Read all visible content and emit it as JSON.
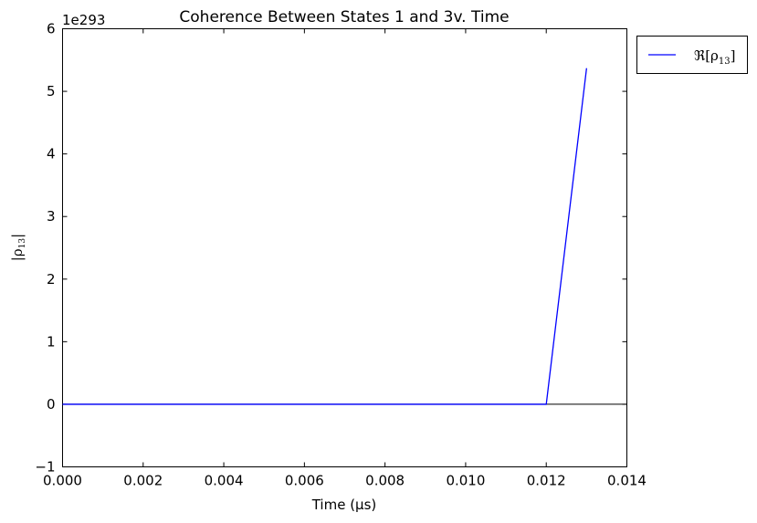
{
  "chart_data": {
    "type": "line",
    "title": "Coherence Between States 1 and 3v. Time",
    "xlabel": "Time (μs)",
    "ylabel": "|ρ13|",
    "ylabel_subscript": "13",
    "ylabel_main": "|ρ",
    "ylabel_end": "|",
    "y_offset_text": "1e293",
    "xlim": [
      0.0,
      0.014
    ],
    "ylim": [
      -1,
      6
    ],
    "x_ticks": [
      0.0,
      0.002,
      0.004,
      0.006,
      0.008,
      0.01,
      0.012,
      0.014
    ],
    "x_tick_labels": [
      "0.000",
      "0.002",
      "0.004",
      "0.006",
      "0.008",
      "0.010",
      "0.012",
      "0.014"
    ],
    "y_ticks": [
      -1,
      0,
      1,
      2,
      3,
      4,
      5,
      6
    ],
    "y_tick_labels": [
      "−1",
      "0",
      "1",
      "2",
      "3",
      "4",
      "5",
      "6"
    ],
    "zero_line": true,
    "grid": false,
    "legend_position": "outside-top-right",
    "series": [
      {
        "name": "ℜ[ρ13]",
        "name_main": "ℜ[ρ",
        "name_sub": "13",
        "name_end": "]",
        "color": "#0000ff",
        "x": [
          0.0,
          0.012,
          0.013
        ],
        "y": [
          0.0,
          0.0,
          5.37
        ]
      }
    ]
  }
}
